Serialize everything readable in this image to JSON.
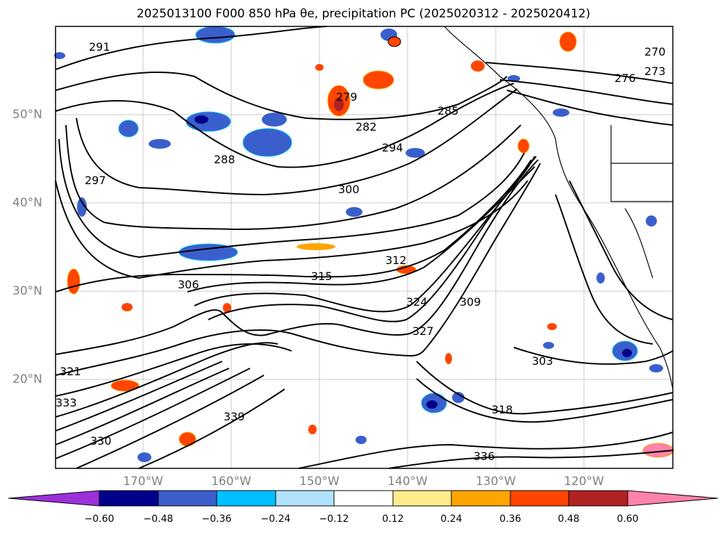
{
  "title": "2025013100 F000 850 hPa θe, precipitation PC (2025020312 - 2025020412)",
  "map": {
    "lat_labels": [
      "50°N",
      "40°N",
      "30°N",
      "20°N"
    ],
    "lon_labels": [
      "170°W",
      "160°W",
      "150°W",
      "140°W",
      "130°W",
      "120°W"
    ],
    "contour_labels": [
      "291",
      "279",
      "282",
      "285",
      "288",
      "294",
      "297",
      "300",
      "306",
      "309",
      "312",
      "315",
      "318",
      "321",
      "324",
      "327",
      "330",
      "333",
      "336",
      "339",
      "303",
      "270",
      "273",
      "276"
    ]
  },
  "colorbar": {
    "ticks": [
      "−0.60",
      "−0.48",
      "−0.36",
      "−0.24",
      "−0.12",
      "0.12",
      "0.24",
      "0.36",
      "0.48",
      "0.60"
    ],
    "colors": [
      "#9b30d9",
      "#00008b",
      "#3a5fcd",
      "#00bfff",
      "#b0e2ff",
      "#ffffff",
      "#ffec8b",
      "#ffa500",
      "#ff4500",
      "#b22222",
      "#ff82ab"
    ]
  }
}
